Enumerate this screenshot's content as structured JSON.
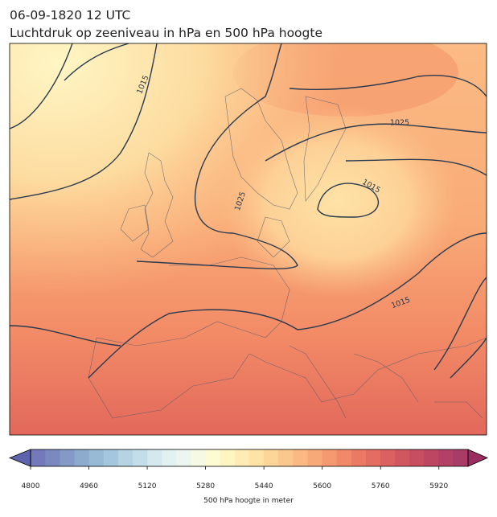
{
  "header": {
    "title_line1": "06-09-1820 12 UTC",
    "title_line2": "Luchtdruk op zeeniveau in hPa en 500 hPa hoogte"
  },
  "map": {
    "contour_labels": [
      "1015",
      "1025",
      "1015",
      "1025",
      "1015"
    ]
  },
  "colorbar": {
    "label": "500 hPa hoogte in meter",
    "clim": [
      4800,
      6000
    ],
    "ticks": [
      4800,
      4960,
      5120,
      5280,
      5440,
      5600,
      5760,
      5920
    ],
    "colors": [
      "#6b72b6",
      "#7483bd",
      "#7d94c3",
      "#87a6ca",
      "#92b6d2",
      "#a0c4da",
      "#b0d1e2",
      "#c1dce8",
      "#d1e7ee",
      "#e0f0f1",
      "#ebf6ee",
      "#f5f9e2",
      "#fcfbd0",
      "#fef4bf",
      "#feebb0",
      "#fee0a1",
      "#fdd393",
      "#fcc486",
      "#fbb47b",
      "#f8a471",
      "#f59468",
      "#f08361",
      "#ea735c",
      "#e26558",
      "#d95857",
      "#ce4d57",
      "#c44459",
      "#b93d5b",
      "#ae375d",
      "#a3315f"
    ]
  }
}
